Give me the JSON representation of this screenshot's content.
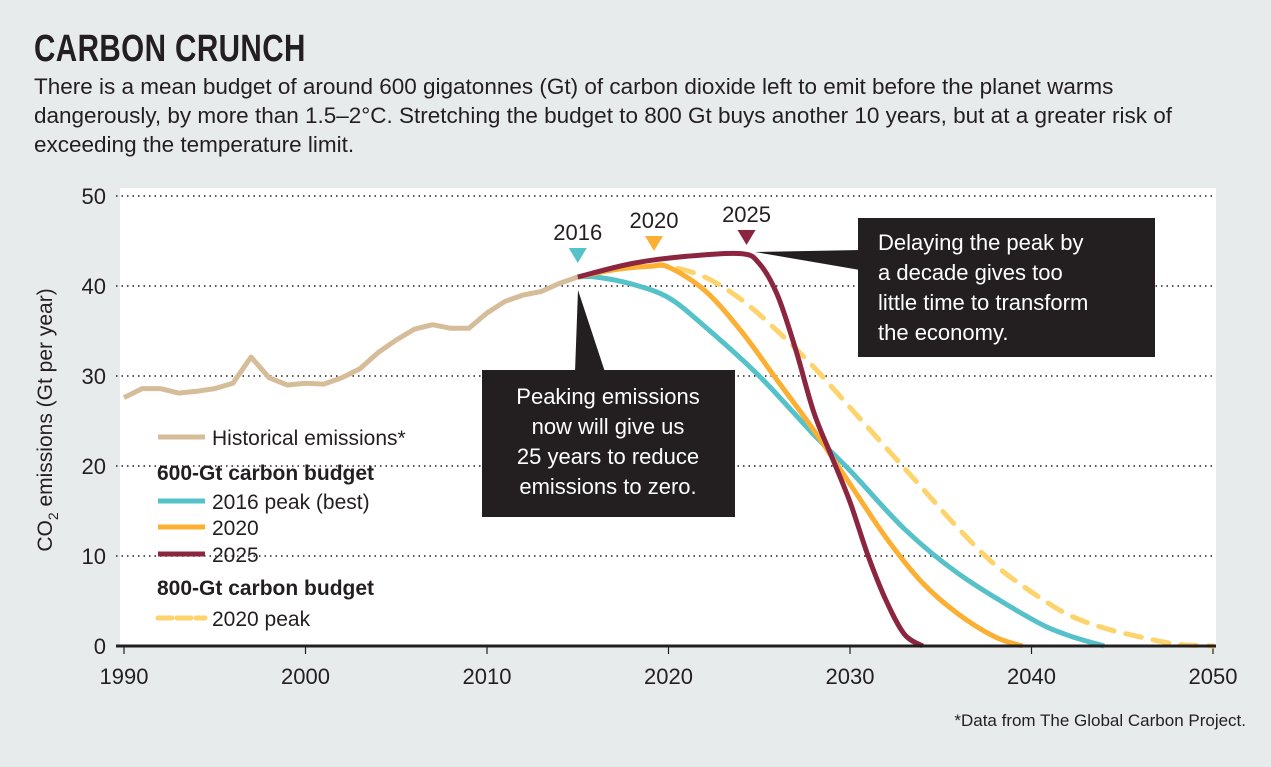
{
  "title": "CARBON CRUNCH",
  "subtitle": "There is a mean budget of around 600 gigatonnes (Gt) of carbon dioxide left to emit before the planet warms dangerously, by more than 1.5–2°C. Stretching the budget to 800 Gt buys another 10 years, but at a greater risk of exceeding the temperature limit.",
  "footnote": "*Data from The Global Carbon Project.",
  "chart_data": {
    "type": "line",
    "xlim": [
      1990,
      2050
    ],
    "ylim": [
      0,
      50
    ],
    "x_ticks": [
      "1990",
      "2000",
      "2010",
      "2020",
      "2030",
      "2040",
      "2050"
    ],
    "y_ticks": [
      "0",
      "10",
      "20",
      "30",
      "40",
      "50"
    ],
    "ylabel": {
      "main": "CO",
      "sub": "2",
      "rest": " emissions (Gt per year)"
    },
    "grid": "horizontal dotted",
    "legend_placement": "bottom-left",
    "legend": {
      "historical": "Historical emissions*",
      "group_600": "600-Gt carbon budget",
      "s2016": "2016 peak (best)",
      "s2020": "2020",
      "s2025": "2025",
      "group_800": "800-Gt carbon budget",
      "s800": "2020 peak"
    },
    "series": [
      {
        "key": "historical",
        "color": "#d6bd9a",
        "dash": false,
        "x": [
          1990,
          1991,
          1992,
          1993,
          1994,
          1995,
          1996,
          1997,
          1998,
          1999,
          2000,
          2001,
          2002,
          2003,
          2004,
          2005,
          2006,
          2007,
          2008,
          2009,
          2010,
          2011,
          2012,
          2013,
          2014,
          2015
        ],
        "y": [
          27.6,
          28.6,
          28.6,
          28.1,
          28.3,
          28.6,
          29.2,
          32.1,
          29.8,
          29.0,
          29.2,
          29.1,
          29.8,
          30.8,
          32.6,
          34.0,
          35.2,
          35.7,
          35.3,
          35.3,
          37.0,
          38.3,
          39.0,
          39.4,
          40.3,
          41.0
        ]
      },
      {
        "key": "s2016",
        "color": "#55c2c9",
        "dash": false,
        "x": [
          2015,
          2016,
          2018,
          2020,
          2022,
          2025,
          2028,
          2030,
          2033,
          2036,
          2040,
          2042,
          2044
        ],
        "y": [
          41.0,
          41.0,
          40.2,
          38.7,
          35.5,
          30.0,
          23.5,
          19.5,
          13.0,
          8.0,
          3.0,
          1.2,
          0
        ]
      },
      {
        "key": "s800",
        "color": "#fdd36b",
        "dash": true,
        "x": [
          2019,
          2020,
          2022,
          2024,
          2026,
          2028,
          2030,
          2032,
          2034,
          2036,
          2038,
          2040,
          2042,
          2044,
          2046,
          2048,
          2050
        ],
        "y": [
          42.2,
          42.2,
          41.0,
          38.5,
          35.0,
          31.0,
          26.5,
          22.0,
          17.5,
          13.0,
          9.0,
          6.0,
          3.5,
          2.0,
          1.0,
          0.2,
          0
        ]
      },
      {
        "key": "s2020",
        "color": "#fbb034",
        "dash": false,
        "x": [
          2015,
          2017,
          2019,
          2020,
          2022,
          2024,
          2026,
          2028,
          2030,
          2032,
          2034,
          2036,
          2038,
          2039.5
        ],
        "y": [
          41.0,
          41.8,
          42.2,
          42.1,
          39.5,
          35.0,
          29.5,
          24.0,
          18.0,
          12.0,
          7.0,
          3.5,
          1.0,
          0
        ]
      },
      {
        "key": "s2025",
        "color": "#8b2540",
        "dash": false,
        "x": [
          2015,
          2018,
          2021,
          2024,
          2025,
          2026,
          2027,
          2028,
          2029,
          2030,
          2031,
          2032,
          2033,
          2034
        ],
        "y": [
          41.0,
          42.5,
          43.3,
          43.6,
          42.5,
          39.0,
          33.0,
          26.0,
          21.0,
          16.0,
          10.0,
          5.0,
          1.3,
          0
        ]
      }
    ],
    "peak_markers": [
      {
        "label": "2016",
        "color": "#55c2c9"
      },
      {
        "label": "2020",
        "color": "#fbb034"
      },
      {
        "label": "2025",
        "color": "#8b2540"
      }
    ],
    "annotations": [
      {
        "lines": [
          "Peaking emissions",
          "now will give us",
          "25 years to reduce",
          "emissions to zero."
        ]
      },
      {
        "lines": [
          "Delaying the peak by",
          "a decade gives too",
          "little time to transform",
          "the economy."
        ]
      }
    ]
  }
}
